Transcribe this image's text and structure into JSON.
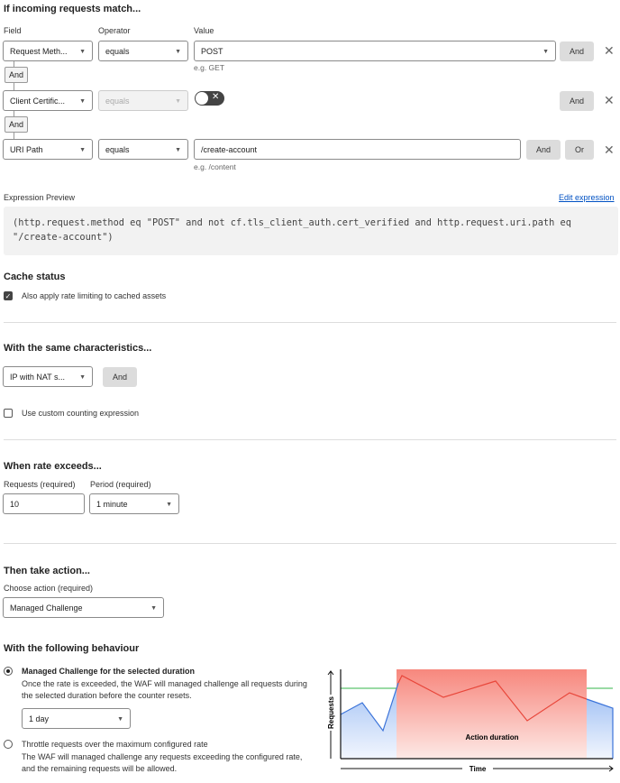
{
  "match": {
    "title": "If incoming requests match...",
    "field_label": "Field",
    "operator_label": "Operator",
    "value_label": "Value",
    "rows": [
      {
        "field": "Request Meth...",
        "operator": "equals",
        "value": "POST",
        "hint": "e.g. GET",
        "and": "And"
      },
      {
        "field": "Client Certific...",
        "operator": "equals",
        "toggle": "off",
        "and": "And"
      },
      {
        "field": "URI Path",
        "operator": "equals",
        "value": "/create-account",
        "hint": "e.g. /content",
        "and": "And",
        "or": "Or"
      }
    ],
    "connector": "And"
  },
  "expression": {
    "label": "Expression Preview",
    "edit": "Edit expression",
    "text": "(http.request.method eq \"POST\" and not cf.tls_client_auth.cert_verified and http.request.uri.path eq \"/create-account\")"
  },
  "cache": {
    "title": "Cache status",
    "checkbox": "Also apply rate limiting to cached assets",
    "checked": true
  },
  "characteristics": {
    "title": "With the same characteristics...",
    "select": "IP with NAT s...",
    "and": "And",
    "custom": "Use custom counting expression",
    "custom_checked": false
  },
  "rate": {
    "title": "When rate exceeds...",
    "requests_label": "Requests (required)",
    "requests": "10",
    "period_label": "Period (required)",
    "period": "1 minute"
  },
  "action": {
    "title": "Then take action...",
    "choose_label": "Choose action (required)",
    "choice": "Managed Challenge"
  },
  "behaviour": {
    "title": "With the following behaviour",
    "opt1_title": "Managed Challenge for the selected duration",
    "opt1_desc": "Once the rate is exceeded, the WAF will managed challenge all requests during the selected duration before the counter resets.",
    "duration": "1 day",
    "opt2_title": "Throttle requests over the maximum configured rate",
    "opt2_desc": "The WAF will managed challenge any requests exceeding the configured rate, and the remaining requests will be allowed.",
    "selected": 1
  },
  "illustration": {
    "y_label": "Requests",
    "x_label": "Time",
    "band_label": "Action duration",
    "colors": {
      "threshold": "#5cc46e",
      "normal": "#3b73d9",
      "exceeded": "#e8473b",
      "band": "#f7877d"
    }
  },
  "colors": {
    "link": "#0051c3"
  }
}
